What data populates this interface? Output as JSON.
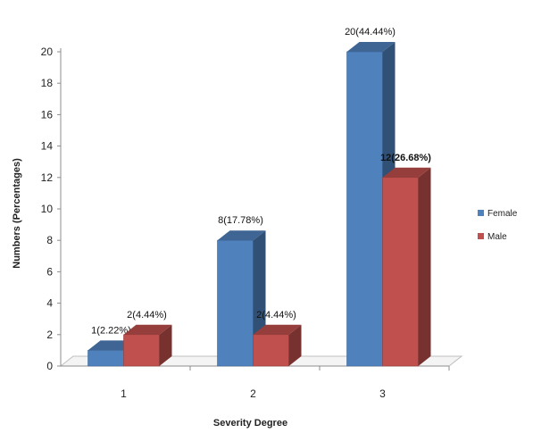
{
  "chart_data": {
    "type": "bar",
    "title": "",
    "xlabel": "Severity Degree",
    "ylabel": "Numbers (Percentages)",
    "ylim": [
      0,
      20
    ],
    "yticks": [
      0,
      2,
      4,
      6,
      8,
      10,
      12,
      14,
      16,
      18,
      20
    ],
    "categories": [
      "1",
      "2",
      "3"
    ],
    "series": [
      {
        "name": "Female",
        "color": "#4f81bd",
        "values": [
          1,
          8,
          20
        ],
        "labels": [
          "1(2.22%)",
          "8(17.78%)",
          "20(44.44%)"
        ]
      },
      {
        "name": "Male",
        "color": "#c0504d",
        "values": [
          2,
          2,
          12
        ],
        "labels": [
          "2(4.44%)",
          "2(4.44%)",
          "12(26.68%)"
        ]
      }
    ],
    "legend_position": "right",
    "grid": false,
    "style": "3d-column"
  }
}
